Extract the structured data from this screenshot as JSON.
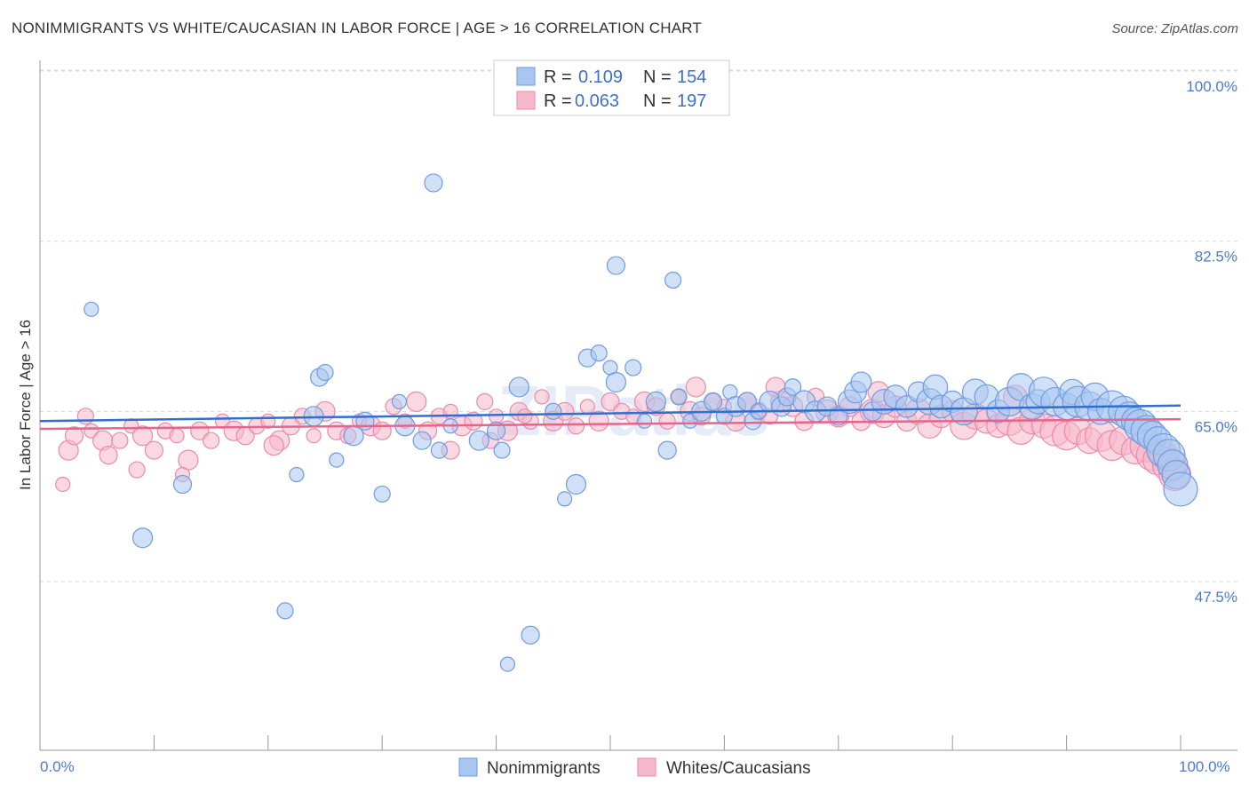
{
  "header": {
    "title": "NONIMMIGRANTS VS WHITE/CAUCASIAN IN LABOR FORCE | AGE > 16 CORRELATION CHART",
    "source": "Source: ZipAtlas.com"
  },
  "watermark": "ZIPatlas",
  "legend": {
    "rows": [
      {
        "r_label": "R =",
        "r_value": "0.109",
        "n_label": "N =",
        "n_value": "154"
      },
      {
        "r_label": "R =",
        "r_value": "0.063",
        "n_label": "N =",
        "n_value": "197"
      }
    ]
  },
  "bottom_legend": {
    "items": [
      {
        "label": "Nonimmigrants"
      },
      {
        "label": "Whites/Caucasians"
      }
    ]
  },
  "colors": {
    "blue_fill": "#a9c6f0",
    "blue_stroke": "#6f9be0",
    "blue_line": "#2f6fd0",
    "pink_fill": "#f6b8cb",
    "pink_stroke": "#ec8aa8",
    "pink_line": "#e8648c",
    "grid": "#d8d8d8",
    "tick_text": "#4a7bd0"
  },
  "chart_data": {
    "type": "scatter",
    "title": "NONIMMIGRANTS VS WHITE/CAUCASIAN IN LABOR FORCE | AGE > 16 CORRELATION CHART",
    "xlabel": "",
    "ylabel": "In Labor Force | Age > 16",
    "xlim": [
      0,
      100
    ],
    "ylim": [
      35,
      100
    ],
    "x_tick_labels": [
      "0.0%",
      "100.0%"
    ],
    "y_ticks": [
      47.5,
      65.0,
      82.5,
      100.0
    ],
    "y_tick_labels": [
      "47.5%",
      "65.0%",
      "82.5%",
      "100.0%"
    ],
    "grid": true,
    "legend_position": "top-center",
    "series": [
      {
        "name": "Nonimmigrants",
        "R": 0.109,
        "N": 154,
        "trend": {
          "x": [
            0,
            100
          ],
          "y": [
            64.0,
            65.6
          ]
        },
        "points": [
          [
            4.5,
            75.5
          ],
          [
            9,
            52
          ],
          [
            12.5,
            57.5
          ],
          [
            21.5,
            44.5
          ],
          [
            22.5,
            58.5
          ],
          [
            24,
            64.5
          ],
          [
            24.5,
            68.5
          ],
          [
            25,
            69
          ],
          [
            26,
            60
          ],
          [
            27.5,
            62.5
          ],
          [
            28.5,
            64
          ],
          [
            30,
            56.5
          ],
          [
            31.5,
            66
          ],
          [
            32,
            63.5
          ],
          [
            33.5,
            62
          ],
          [
            35,
            61
          ],
          [
            36,
            63.5
          ],
          [
            38.5,
            62
          ],
          [
            40,
            63
          ],
          [
            40.5,
            61
          ],
          [
            41,
            39
          ],
          [
            42,
            67.5
          ],
          [
            43,
            42
          ],
          [
            45,
            65
          ],
          [
            46,
            56
          ],
          [
            47,
            57.5
          ],
          [
            48,
            70.5
          ],
          [
            49,
            71
          ],
          [
            50,
            69.5
          ],
          [
            50.5,
            68
          ],
          [
            50.5,
            80
          ],
          [
            52,
            69.5
          ],
          [
            53,
            64
          ],
          [
            54,
            66
          ],
          [
            55,
            61
          ],
          [
            56,
            66.5
          ],
          [
            57,
            64
          ],
          [
            58,
            65
          ],
          [
            59,
            66
          ],
          [
            60,
            64.5
          ],
          [
            60.5,
            67
          ],
          [
            61,
            65.5
          ],
          [
            62,
            66
          ],
          [
            62.5,
            64
          ],
          [
            63,
            65
          ],
          [
            64,
            66
          ],
          [
            65,
            65.5
          ],
          [
            65.5,
            66.5
          ],
          [
            66,
            67.5
          ],
          [
            67,
            66
          ],
          [
            68,
            65
          ],
          [
            69,
            65.5
          ],
          [
            70,
            64.5
          ],
          [
            71,
            66
          ],
          [
            71.5,
            67
          ],
          [
            72,
            68
          ],
          [
            73,
            65
          ],
          [
            74,
            66
          ],
          [
            75,
            66.5
          ],
          [
            76,
            65.5
          ],
          [
            77,
            67
          ],
          [
            78,
            66
          ],
          [
            78.5,
            67.5
          ],
          [
            79,
            65.5
          ],
          [
            80,
            66
          ],
          [
            81,
            65
          ],
          [
            82,
            67
          ],
          [
            83,
            66.5
          ],
          [
            84,
            65
          ],
          [
            85,
            66
          ],
          [
            86,
            67.5
          ],
          [
            87,
            65.5
          ],
          [
            87.5,
            66
          ],
          [
            88,
            67
          ],
          [
            89,
            66
          ],
          [
            90,
            65.5
          ],
          [
            90.5,
            67
          ],
          [
            91,
            66
          ],
          [
            92,
            65.5
          ],
          [
            92.5,
            66.5
          ],
          [
            93,
            65
          ],
          [
            94,
            65.5
          ],
          [
            95,
            65
          ],
          [
            95.5,
            64.5
          ],
          [
            96,
            64
          ],
          [
            96.5,
            63.5
          ],
          [
            97,
            63
          ],
          [
            97.5,
            62.5
          ],
          [
            98,
            62
          ],
          [
            98.5,
            61
          ],
          [
            99,
            60.5
          ],
          [
            99.3,
            59.5
          ],
          [
            99.6,
            58.5
          ],
          [
            100,
            57
          ],
          [
            34.5,
            88.5
          ],
          [
            55.5,
            78.5
          ]
        ]
      },
      {
        "name": "Whites/Caucasians",
        "R": 0.063,
        "N": 197,
        "trend": {
          "x": [
            0,
            100
          ],
          "y": [
            63.2,
            64.2
          ]
        },
        "points": [
          [
            2,
            57.5
          ],
          [
            2.5,
            61
          ],
          [
            3,
            62.5
          ],
          [
            4,
            64.5
          ],
          [
            4.5,
            63
          ],
          [
            5.5,
            62
          ],
          [
            6,
            60.5
          ],
          [
            7,
            62
          ],
          [
            8,
            63.5
          ],
          [
            9,
            62.5
          ],
          [
            10,
            61
          ],
          [
            11,
            63
          ],
          [
            12,
            62.5
          ],
          [
            13,
            60
          ],
          [
            14,
            63
          ],
          [
            15,
            62
          ],
          [
            16,
            64
          ],
          [
            17,
            63
          ],
          [
            18,
            62.5
          ],
          [
            19,
            63.5
          ],
          [
            20,
            64
          ],
          [
            21,
            62
          ],
          [
            22,
            63.5
          ],
          [
            23,
            64.5
          ],
          [
            24,
            62.5
          ],
          [
            25,
            65
          ],
          [
            26,
            63
          ],
          [
            27,
            62.5
          ],
          [
            28,
            64
          ],
          [
            29,
            63.5
          ],
          [
            30,
            63
          ],
          [
            31,
            65.5
          ],
          [
            32,
            64
          ],
          [
            33,
            66
          ],
          [
            34,
            63
          ],
          [
            35,
            64.5
          ],
          [
            36,
            65
          ],
          [
            37,
            63.5
          ],
          [
            38,
            64
          ],
          [
            39,
            66
          ],
          [
            40,
            64.5
          ],
          [
            41,
            63
          ],
          [
            42,
            65
          ],
          [
            43,
            64
          ],
          [
            44,
            66.5
          ],
          [
            45,
            64
          ],
          [
            46,
            65
          ],
          [
            47,
            63.5
          ],
          [
            48,
            65.5
          ],
          [
            49,
            64
          ],
          [
            50,
            66
          ],
          [
            51,
            65
          ],
          [
            52,
            64.5
          ],
          [
            53,
            66
          ],
          [
            54,
            65.5
          ],
          [
            55,
            64
          ],
          [
            56,
            66.5
          ],
          [
            57,
            65
          ],
          [
            58,
            64.5
          ],
          [
            59,
            66
          ],
          [
            60,
            65.5
          ],
          [
            61,
            64
          ],
          [
            62,
            66
          ],
          [
            63,
            65
          ],
          [
            64,
            64.5
          ],
          [
            65,
            66
          ],
          [
            66,
            65.5
          ],
          [
            67,
            64
          ],
          [
            68,
            66.5
          ],
          [
            69,
            65
          ],
          [
            70,
            64.5
          ],
          [
            71,
            65.5
          ],
          [
            72,
            64
          ],
          [
            73,
            65
          ],
          [
            74,
            64.5
          ],
          [
            75,
            65.5
          ],
          [
            76,
            64
          ],
          [
            77,
            65
          ],
          [
            78,
            63.5
          ],
          [
            79,
            64.5
          ],
          [
            80,
            65
          ],
          [
            81,
            63.5
          ],
          [
            82,
            64.5
          ],
          [
            83,
            64
          ],
          [
            84,
            63.5
          ],
          [
            85,
            64
          ],
          [
            86,
            63
          ],
          [
            87,
            64
          ],
          [
            88,
            63.5
          ],
          [
            89,
            63
          ],
          [
            90,
            62.5
          ],
          [
            91,
            63
          ],
          [
            92,
            62
          ],
          [
            93,
            62.5
          ],
          [
            94,
            61.5
          ],
          [
            95,
            62
          ],
          [
            96,
            61
          ],
          [
            97,
            61.5
          ],
          [
            97.5,
            60.5
          ],
          [
            98,
            60
          ],
          [
            98.5,
            60.5
          ],
          [
            99,
            59.5
          ],
          [
            99.5,
            58.5
          ],
          [
            8.5,
            59
          ],
          [
            12.5,
            58.5
          ],
          [
            20.5,
            61.5
          ],
          [
            36,
            61
          ],
          [
            39.5,
            62
          ],
          [
            42.5,
            64.5
          ],
          [
            57.5,
            67.5
          ],
          [
            64.5,
            67.5
          ],
          [
            73.5,
            67
          ],
          [
            85.5,
            66.5
          ]
        ]
      }
    ]
  }
}
